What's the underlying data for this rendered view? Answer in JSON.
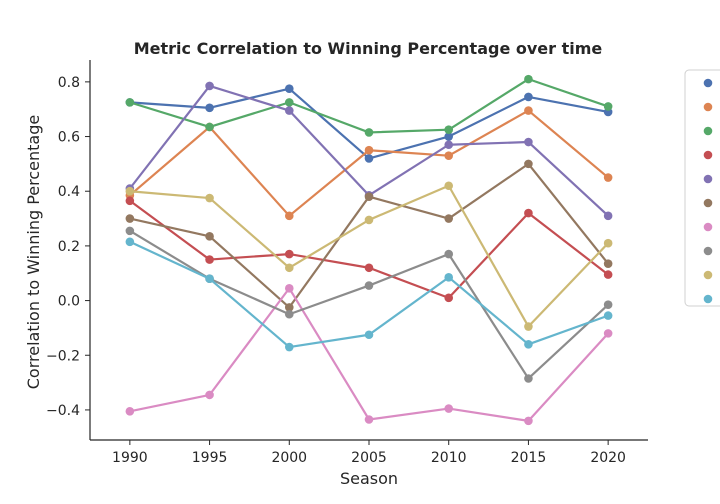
{
  "chart_data": {
    "type": "line",
    "title": "Metric Correlation to Winning Percentage over time",
    "xlabel": "Season",
    "ylabel": "Correlation to Winning Percentage",
    "x": [
      1990,
      1995,
      2000,
      2005,
      2010,
      2015,
      2020
    ],
    "x_ticks": [
      "1990",
      "1995",
      "2000",
      "2005",
      "2010",
      "2015",
      "2020"
    ],
    "y_ticks": [
      "−0.4",
      "−0.2",
      "0.0",
      "0.2",
      "0.4",
      "0.6",
      "0.8"
    ],
    "y_tick_values": [
      -0.4,
      -0.2,
      0.0,
      0.2,
      0.4,
      0.6,
      0.8
    ],
    "ylim": [
      -0.51,
      0.88
    ],
    "xlim": [
      1987.5,
      2022.5
    ],
    "grid": false,
    "legend_position": "right, partially cut off",
    "series": [
      {
        "color": "#4c72b0",
        "values": [
          0.725,
          0.705,
          0.775,
          0.52,
          0.6,
          0.745,
          0.69
        ]
      },
      {
        "color": "#dd8452",
        "values": [
          0.385,
          0.635,
          0.31,
          0.55,
          0.53,
          0.695,
          0.45
        ]
      },
      {
        "color": "#55a868",
        "values": [
          0.725,
          0.635,
          0.725,
          0.615,
          0.625,
          0.81,
          0.71
        ]
      },
      {
        "color": "#c44e52",
        "values": [
          0.365,
          0.15,
          0.17,
          0.12,
          0.01,
          0.32,
          0.095
        ]
      },
      {
        "color": "#8172b3",
        "values": [
          0.41,
          0.785,
          0.695,
          0.385,
          0.57,
          0.58,
          0.31
        ]
      },
      {
        "color": "#937860",
        "values": [
          0.3,
          0.235,
          -0.025,
          0.38,
          0.3,
          0.5,
          0.135
        ]
      },
      {
        "color": "#da8bc3",
        "values": [
          -0.405,
          -0.345,
          0.045,
          -0.435,
          -0.395,
          -0.44,
          -0.12
        ]
      },
      {
        "color": "#8c8c8c",
        "values": [
          0.255,
          0.08,
          -0.05,
          0.055,
          0.17,
          -0.285,
          -0.015
        ]
      },
      {
        "color": "#ccb974",
        "values": [
          0.4,
          0.375,
          0.12,
          0.295,
          0.42,
          -0.095,
          0.21
        ]
      },
      {
        "color": "#64b5cd",
        "values": [
          0.215,
          0.08,
          -0.17,
          -0.125,
          0.085,
          -0.16,
          -0.055
        ]
      }
    ]
  }
}
